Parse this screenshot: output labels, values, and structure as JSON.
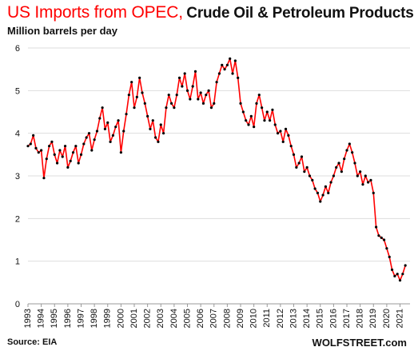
{
  "header": {
    "title_main": "US Imports from OPEC,",
    "title_sub": "Crude Oil & Petroleum Products",
    "y_label": "Million barrels per day"
  },
  "footer": {
    "source": "Source: EIA",
    "brand": "WOLFSTREET.com"
  },
  "colors": {
    "line": "#ff0000",
    "marker": "#000000",
    "grid": "#dddddd",
    "axis": "#999999"
  },
  "chart_data": {
    "type": "line",
    "title": "US Imports from OPEC, Crude Oil & Petroleum Products",
    "xlabel": "",
    "ylabel": "Million barrels per day",
    "xlim": [
      1993,
      2021.75
    ],
    "ylim": [
      0,
      6
    ],
    "grid": true,
    "y_ticks": [
      "0",
      "1",
      "2",
      "3",
      "4",
      "5",
      "6"
    ],
    "x_ticks": [
      "1993",
      "1994",
      "1995",
      "1996",
      "1997",
      "1998",
      "1999",
      "2000",
      "2001",
      "2002",
      "2003",
      "2004",
      "2005",
      "2006",
      "2007",
      "2008",
      "2009",
      "2010",
      "2011",
      "2012",
      "2013",
      "2014",
      "2015",
      "2016",
      "2017",
      "2018",
      "2019",
      "2020",
      "2021"
    ],
    "series": [
      {
        "values": [
          [
            1993.0,
            3.7
          ],
          [
            1993.2,
            3.75
          ],
          [
            1993.4,
            3.95
          ],
          [
            1993.6,
            3.65
          ],
          [
            1993.8,
            3.55
          ],
          [
            1994.0,
            3.6
          ],
          [
            1994.2,
            2.95
          ],
          [
            1994.4,
            3.4
          ],
          [
            1994.6,
            3.7
          ],
          [
            1994.8,
            3.8
          ],
          [
            1995.0,
            3.5
          ],
          [
            1995.2,
            3.3
          ],
          [
            1995.4,
            3.6
          ],
          [
            1995.6,
            3.45
          ],
          [
            1995.8,
            3.7
          ],
          [
            1996.0,
            3.2
          ],
          [
            1996.2,
            3.35
          ],
          [
            1996.4,
            3.55
          ],
          [
            1996.6,
            3.7
          ],
          [
            1996.8,
            3.3
          ],
          [
            1997.0,
            3.5
          ],
          [
            1997.2,
            3.75
          ],
          [
            1997.4,
            3.9
          ],
          [
            1997.6,
            4.0
          ],
          [
            1997.8,
            3.6
          ],
          [
            1998.0,
            3.85
          ],
          [
            1998.2,
            4.05
          ],
          [
            1998.4,
            4.35
          ],
          [
            1998.6,
            4.6
          ],
          [
            1998.8,
            4.1
          ],
          [
            1999.0,
            4.25
          ],
          [
            1999.2,
            3.8
          ],
          [
            1999.4,
            3.95
          ],
          [
            1999.6,
            4.15
          ],
          [
            1999.8,
            4.3
          ],
          [
            2000.0,
            3.55
          ],
          [
            2000.2,
            4.05
          ],
          [
            2000.4,
            4.45
          ],
          [
            2000.6,
            4.9
          ],
          [
            2000.8,
            5.2
          ],
          [
            2001.0,
            4.6
          ],
          [
            2001.2,
            4.85
          ],
          [
            2001.4,
            5.3
          ],
          [
            2001.6,
            4.95
          ],
          [
            2001.8,
            4.7
          ],
          [
            2002.0,
            4.4
          ],
          [
            2002.2,
            4.1
          ],
          [
            2002.4,
            4.3
          ],
          [
            2002.6,
            3.9
          ],
          [
            2002.8,
            3.8
          ],
          [
            2003.0,
            4.2
          ],
          [
            2003.2,
            4.0
          ],
          [
            2003.4,
            4.6
          ],
          [
            2003.6,
            4.9
          ],
          [
            2003.8,
            4.7
          ],
          [
            2004.0,
            4.6
          ],
          [
            2004.2,
            4.9
          ],
          [
            2004.4,
            5.3
          ],
          [
            2004.6,
            5.1
          ],
          [
            2004.8,
            5.4
          ],
          [
            2005.0,
            5.0
          ],
          [
            2005.2,
            4.8
          ],
          [
            2005.4,
            5.1
          ],
          [
            2005.6,
            5.45
          ],
          [
            2005.8,
            4.8
          ],
          [
            2006.0,
            4.95
          ],
          [
            2006.2,
            4.7
          ],
          [
            2006.4,
            4.9
          ],
          [
            2006.6,
            5.0
          ],
          [
            2006.8,
            4.6
          ],
          [
            2007.0,
            4.7
          ],
          [
            2007.2,
            5.2
          ],
          [
            2007.4,
            5.4
          ],
          [
            2007.6,
            5.6
          ],
          [
            2007.8,
            5.5
          ],
          [
            2008.0,
            5.6
          ],
          [
            2008.2,
            5.75
          ],
          [
            2008.4,
            5.4
          ],
          [
            2008.6,
            5.7
          ],
          [
            2008.8,
            5.3
          ],
          [
            2009.0,
            4.7
          ],
          [
            2009.2,
            4.5
          ],
          [
            2009.4,
            4.3
          ],
          [
            2009.6,
            4.2
          ],
          [
            2009.8,
            4.4
          ],
          [
            2010.0,
            4.15
          ],
          [
            2010.2,
            4.7
          ],
          [
            2010.4,
            4.9
          ],
          [
            2010.6,
            4.6
          ],
          [
            2010.8,
            4.3
          ],
          [
            2011.0,
            4.5
          ],
          [
            2011.2,
            4.3
          ],
          [
            2011.4,
            4.55
          ],
          [
            2011.6,
            4.2
          ],
          [
            2011.8,
            4.0
          ],
          [
            2012.0,
            4.05
          ],
          [
            2012.2,
            3.8
          ],
          [
            2012.4,
            4.1
          ],
          [
            2012.6,
            3.95
          ],
          [
            2012.8,
            3.7
          ],
          [
            2013.0,
            3.5
          ],
          [
            2013.2,
            3.2
          ],
          [
            2013.4,
            3.3
          ],
          [
            2013.6,
            3.45
          ],
          [
            2013.8,
            3.1
          ],
          [
            2014.0,
            3.2
          ],
          [
            2014.2,
            3.0
          ],
          [
            2014.4,
            2.9
          ],
          [
            2014.6,
            2.7
          ],
          [
            2014.8,
            2.6
          ],
          [
            2015.0,
            2.4
          ],
          [
            2015.2,
            2.55
          ],
          [
            2015.4,
            2.75
          ],
          [
            2015.6,
            2.6
          ],
          [
            2015.8,
            2.85
          ],
          [
            2016.0,
            3.0
          ],
          [
            2016.2,
            3.2
          ],
          [
            2016.4,
            3.3
          ],
          [
            2016.6,
            3.1
          ],
          [
            2016.8,
            3.4
          ],
          [
            2017.0,
            3.6
          ],
          [
            2017.2,
            3.75
          ],
          [
            2017.4,
            3.55
          ],
          [
            2017.6,
            3.3
          ],
          [
            2017.8,
            3.0
          ],
          [
            2018.0,
            3.1
          ],
          [
            2018.2,
            2.8
          ],
          [
            2018.4,
            3.0
          ],
          [
            2018.6,
            2.85
          ],
          [
            2018.8,
            2.9
          ],
          [
            2019.0,
            2.6
          ],
          [
            2019.2,
            1.8
          ],
          [
            2019.4,
            1.6
          ],
          [
            2019.6,
            1.55
          ],
          [
            2019.8,
            1.5
          ],
          [
            2020.0,
            1.3
          ],
          [
            2020.2,
            1.1
          ],
          [
            2020.4,
            0.8
          ],
          [
            2020.6,
            0.65
          ],
          [
            2020.8,
            0.7
          ],
          [
            2021.0,
            0.55
          ],
          [
            2021.2,
            0.7
          ],
          [
            2021.4,
            0.9
          ]
        ]
      }
    ]
  }
}
